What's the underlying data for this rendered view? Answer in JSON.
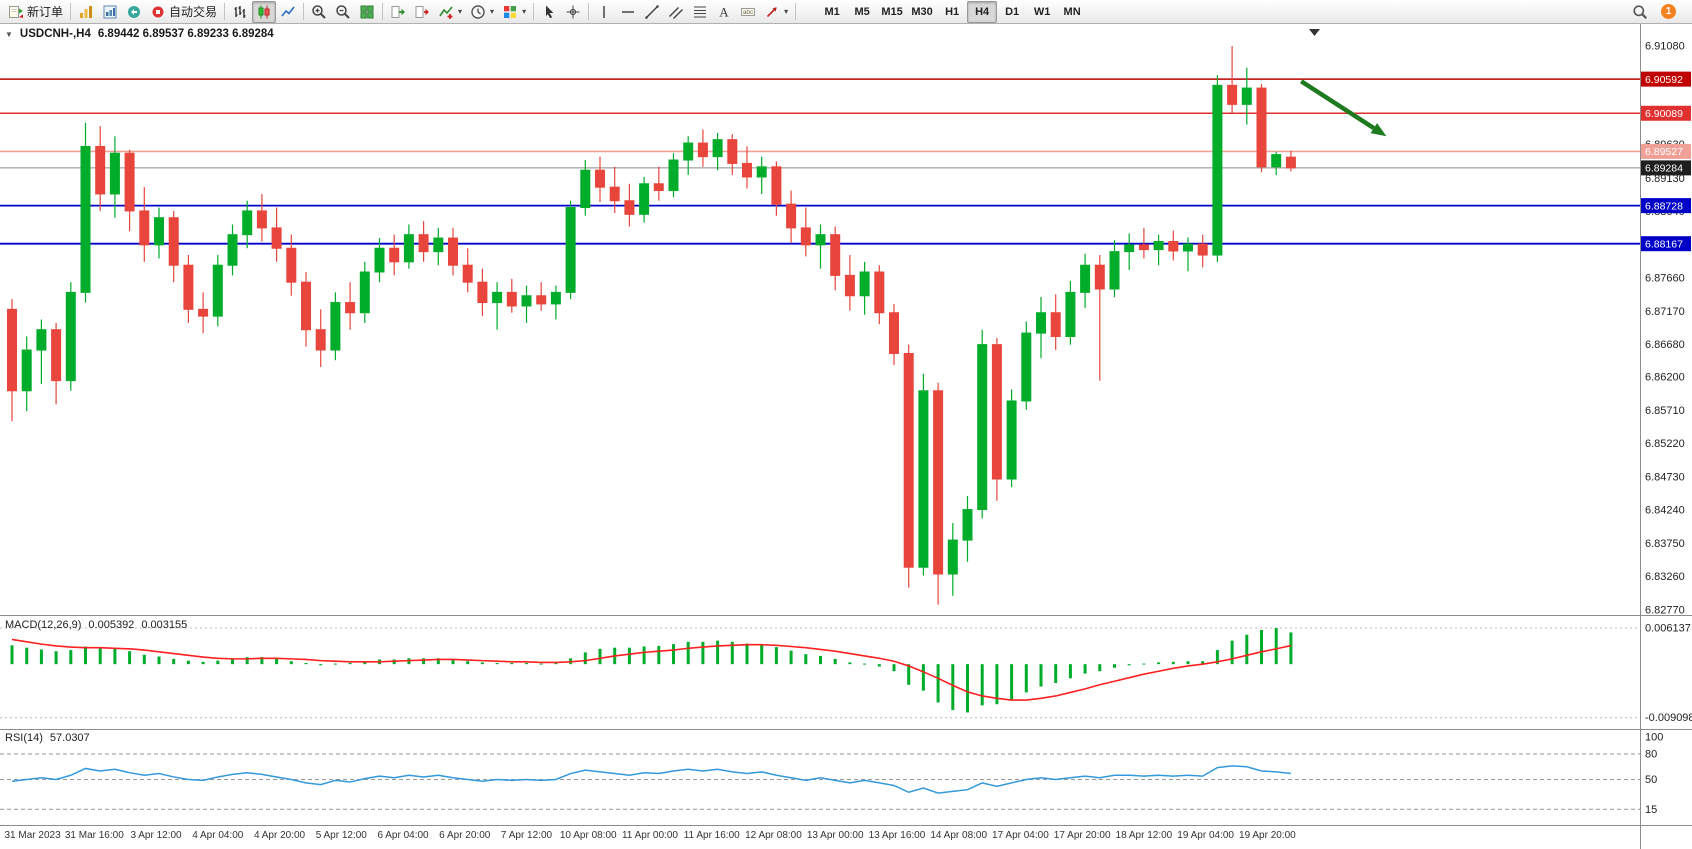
{
  "toolbar": {
    "buttons": [
      {
        "name": "new-order",
        "label": "新订单"
      },
      {
        "sep": true
      },
      {
        "name": "new-chart"
      },
      {
        "name": "profiles"
      },
      {
        "name": "community"
      },
      {
        "name": "auto-trading",
        "label": "自动交易"
      },
      {
        "sep": true
      },
      {
        "name": "bar-chart"
      },
      {
        "name": "candlesticks",
        "active": true
      },
      {
        "name": "line-chart"
      },
      {
        "sep": true
      },
      {
        "name": "zoom-in"
      },
      {
        "name": "zoom-out"
      },
      {
        "name": "tile-windows"
      },
      {
        "sep": true
      },
      {
        "name": "auto-scroll"
      },
      {
        "name": "chart-shift"
      },
      {
        "name": "indicators",
        "caret": true
      },
      {
        "name": "periods",
        "caret": true
      },
      {
        "name": "templates",
        "caret": true
      },
      {
        "sep": true
      },
      {
        "name": "cursor"
      },
      {
        "name": "crosshair"
      },
      {
        "sep": true
      },
      {
        "name": "vline"
      },
      {
        "name": "hline"
      },
      {
        "name": "trendline"
      },
      {
        "name": "channel"
      },
      {
        "name": "fibonacci"
      },
      {
        "name": "text"
      },
      {
        "name": "label"
      },
      {
        "name": "arrows",
        "caret": true
      },
      {
        "sep": true
      }
    ],
    "timeframes": [
      "M1",
      "M5",
      "M15",
      "M30",
      "H1",
      "H4",
      "D1",
      "W1",
      "MN"
    ],
    "active_timeframe": "H4",
    "notification_count": "1"
  },
  "chart_data": [
    {
      "type": "candlestick",
      "title": "USDCNH-,H4",
      "ohlc_text": "6.89442 6.89537 6.89233 6.89284",
      "ohlc_current": {
        "open": 6.89442,
        "high": 6.89537,
        "low": 6.89233,
        "close": 6.89284
      },
      "collapse_glyph": "▼",
      "ylim": [
        6.8277,
        6.9108
      ],
      "y_axis_labels": [
        "6.91080",
        "6.89630",
        "6.89130",
        "6.88640",
        "6.88150",
        "6.87660",
        "6.87170",
        "6.86680",
        "6.86200",
        "6.85710",
        "6.85220",
        "6.84730",
        "6.84240",
        "6.83750",
        "6.83260",
        "6.82770"
      ],
      "x_axis_labels": [
        "31 Mar 2023",
        "31 Mar 16:00",
        "3 Apr 12:00",
        "4 Apr 04:00",
        "4 Apr 20:00",
        "5 Apr 12:00",
        "6 Apr 04:00",
        "6 Apr 20:00",
        "7 Apr 12:00",
        "10 Apr 08:00",
        "11 Apr 00:00",
        "11 Apr 16:00",
        "12 Apr 08:00",
        "13 Apr 00:00",
        "13 Apr 16:00",
        "14 Apr 08:00",
        "17 Apr 04:00",
        "17 Apr 20:00",
        "18 Apr 12:00",
        "19 Apr 04:00",
        "19 Apr 20:00"
      ],
      "candles_ohlc": [
        [
          6.872,
          6.8735,
          6.8555,
          6.86
        ],
        [
          6.86,
          6.868,
          6.857,
          6.866
        ],
        [
          6.866,
          6.8705,
          6.861,
          6.869
        ],
        [
          6.869,
          6.87,
          6.858,
          6.8615
        ],
        [
          6.8615,
          6.876,
          6.86,
          6.8745
        ],
        [
          6.8745,
          6.8995,
          6.873,
          6.896
        ],
        [
          6.896,
          6.899,
          6.8865,
          6.889
        ],
        [
          6.889,
          6.8975,
          6.8855,
          6.895
        ],
        [
          6.895,
          6.8955,
          6.8835,
          6.8865
        ],
        [
          6.8865,
          6.89,
          6.879,
          6.8815
        ],
        [
          6.8815,
          6.887,
          6.8795,
          6.8855
        ],
        [
          6.8855,
          6.8865,
          6.876,
          6.8785
        ],
        [
          6.8785,
          6.88,
          6.87,
          6.872
        ],
        [
          6.872,
          6.8745,
          6.8685,
          6.871
        ],
        [
          6.871,
          6.88,
          6.8695,
          6.8785
        ],
        [
          6.8785,
          6.8845,
          6.877,
          6.883
        ],
        [
          6.883,
          6.888,
          6.881,
          6.8865
        ],
        [
          6.8865,
          6.889,
          6.882,
          6.884
        ],
        [
          6.884,
          6.887,
          6.879,
          6.881
        ],
        [
          6.881,
          6.883,
          6.874,
          6.876
        ],
        [
          6.876,
          6.8775,
          6.8665,
          6.869
        ],
        [
          6.869,
          6.872,
          6.8635,
          6.866
        ],
        [
          6.866,
          6.8745,
          6.8645,
          6.873
        ],
        [
          6.873,
          6.876,
          6.869,
          6.8715
        ],
        [
          6.8715,
          6.879,
          6.87,
          6.8775
        ],
        [
          6.8775,
          6.8825,
          6.876,
          6.881
        ],
        [
          6.881,
          6.883,
          6.877,
          6.879
        ],
        [
          6.879,
          6.8845,
          6.878,
          6.883
        ],
        [
          6.883,
          6.885,
          6.879,
          6.8805
        ],
        [
          6.8805,
          6.884,
          6.8785,
          6.8825
        ],
        [
          6.8825,
          6.884,
          6.877,
          6.8785
        ],
        [
          6.8785,
          6.881,
          6.8745,
          6.876
        ],
        [
          6.876,
          6.878,
          6.871,
          6.873
        ],
        [
          6.873,
          6.876,
          6.869,
          6.8745
        ],
        [
          6.8745,
          6.8765,
          6.8715,
          6.8725
        ],
        [
          6.8725,
          6.8755,
          6.87,
          6.874
        ],
        [
          6.874,
          6.876,
          6.8718,
          6.8728
        ],
        [
          6.8728,
          6.8755,
          6.8705,
          6.8745
        ],
        [
          6.8745,
          6.888,
          6.8735,
          6.887
        ],
        [
          6.887,
          6.894,
          6.8858,
          6.8925
        ],
        [
          6.8925,
          6.8945,
          6.8878,
          6.89
        ],
        [
          6.89,
          6.893,
          6.8862,
          6.888
        ],
        [
          6.888,
          6.8905,
          6.8842,
          6.886
        ],
        [
          6.886,
          6.8915,
          6.8848,
          6.8905
        ],
        [
          6.8905,
          6.893,
          6.888,
          6.8895
        ],
        [
          6.8895,
          6.895,
          6.8885,
          6.894
        ],
        [
          6.894,
          6.8975,
          6.8918,
          6.8965
        ],
        [
          6.8965,
          6.8985,
          6.893,
          6.8945
        ],
        [
          6.8945,
          6.898,
          6.8925,
          6.897
        ],
        [
          6.897,
          6.8978,
          6.8918,
          6.8935
        ],
        [
          6.8935,
          6.896,
          6.8898,
          6.8915
        ],
        [
          6.8915,
          6.8945,
          6.889,
          6.893
        ],
        [
          6.893,
          6.8938,
          6.8858,
          6.8875
        ],
        [
          6.8875,
          6.8895,
          6.8818,
          6.884
        ],
        [
          6.884,
          6.887,
          6.8798,
          6.8815
        ],
        [
          6.8815,
          6.8845,
          6.878,
          6.883
        ],
        [
          6.883,
          6.8842,
          6.8748,
          6.877
        ],
        [
          6.877,
          6.88,
          6.8718,
          6.874
        ],
        [
          6.874,
          6.879,
          6.8712,
          6.8775
        ],
        [
          6.8775,
          6.8785,
          6.8698,
          6.8715
        ],
        [
          6.8715,
          6.8728,
          6.8638,
          6.8655
        ],
        [
          6.8655,
          6.8668,
          6.831,
          6.834
        ],
        [
          6.834,
          6.8625,
          6.8328,
          6.86
        ],
        [
          6.86,
          6.8612,
          6.8285,
          6.833
        ],
        [
          6.833,
          6.8405,
          6.8298,
          6.838
        ],
        [
          6.838,
          6.8445,
          6.8348,
          6.8425
        ],
        [
          6.8425,
          6.869,
          6.8412,
          6.8668
        ],
        [
          6.8668,
          6.8678,
          6.8438,
          6.847
        ],
        [
          6.847,
          6.8602,
          6.8458,
          6.8585
        ],
        [
          6.8585,
          6.8702,
          6.8572,
          6.8685
        ],
        [
          6.8685,
          6.8738,
          6.8648,
          6.8715
        ],
        [
          6.8715,
          6.8742,
          6.866,
          6.868
        ],
        [
          6.868,
          6.8762,
          6.8668,
          6.8745
        ],
        [
          6.8745,
          6.8802,
          6.8722,
          6.8785
        ],
        [
          6.8785,
          6.88,
          6.8615,
          6.875
        ],
        [
          6.875,
          6.8822,
          6.8738,
          6.8805
        ],
        [
          6.8805,
          6.8832,
          6.8778,
          6.8815
        ],
        [
          6.8815,
          6.884,
          6.8795,
          6.8808
        ],
        [
          6.8808,
          6.883,
          6.8785,
          6.882
        ],
        [
          6.882,
          6.8836,
          6.8792,
          6.8806
        ],
        [
          6.8806,
          6.8826,
          6.8776,
          6.8816
        ],
        [
          6.8816,
          6.883,
          6.8782,
          6.88
        ],
        [
          6.88,
          6.9065,
          6.879,
          6.905
        ],
        [
          6.905,
          6.9108,
          6.9008,
          6.9022
        ],
        [
          6.9022,
          6.9076,
          6.8992,
          6.9046
        ],
        [
          6.9046,
          6.9052,
          6.8922,
          6.893
        ],
        [
          6.893,
          6.8952,
          6.8918,
          6.8948
        ],
        [
          6.89442,
          6.89537,
          6.89233,
          6.89284
        ]
      ],
      "hlines": [
        {
          "price": 6.90592,
          "text": "6.90592",
          "color": "#c00000",
          "width": 1.6
        },
        {
          "price": 6.90089,
          "text": "6.90089",
          "color": "#e03030",
          "width": 1.6
        },
        {
          "price": 6.89527,
          "text": "6.89527",
          "color": "#f0a097",
          "width": 1.6
        },
        {
          "price": 6.88728,
          "text": "6.88728",
          "color": "#0000c8",
          "width": 1.8
        },
        {
          "price": 6.88167,
          "text": "6.88167",
          "color": "#0000c8",
          "width": 1.8
        },
        {
          "price": 6.89284,
          "text": "6.89284",
          "color": "#8a8a8a",
          "width": 1,
          "badge": "#1f1f1f"
        }
      ],
      "annotations": [
        {
          "type": "arrow",
          "from_bar": 87.7,
          "from_price": 6.9056,
          "to_bar": 93.5,
          "to_price": 6.8975,
          "color": "#1e7a1e"
        }
      ],
      "colors": {
        "up": "#00ad2b",
        "down": "#e8453c",
        "background": "#ffffff"
      }
    },
    {
      "type": "macd",
      "label": "MACD(12,26,9)",
      "main_value": "0.005392",
      "signal_value": "0.003155",
      "ylim": [
        -0.0105,
        0.0075
      ],
      "axis_labels": [
        {
          "value": 0.006137,
          "text": "0.006137"
        },
        {
          "value": -0.009098,
          "text": "-0.009098"
        }
      ],
      "histogram": [
        0.0032,
        0.0028,
        0.0025,
        0.0022,
        0.0024,
        0.003,
        0.0028,
        0.0027,
        0.0022,
        0.0016,
        0.0013,
        0.0009,
        0.0006,
        0.0004,
        0.0006,
        0.0009,
        0.0012,
        0.0012,
        0.0009,
        0.0005,
        0.0002,
        -0.0002,
        0.0001,
        0.0002,
        0.0005,
        0.0008,
        0.0008,
        0.001,
        0.001,
        0.001,
        0.0008,
        0.0005,
        0.0003,
        0.0002,
        0.0002,
        0.0002,
        0.0001,
        0.0002,
        0.001,
        0.002,
        0.0026,
        0.0028,
        0.0028,
        0.003,
        0.0031,
        0.0034,
        0.0038,
        0.0038,
        0.004,
        0.0038,
        0.0035,
        0.0033,
        0.0029,
        0.0023,
        0.0017,
        0.0014,
        0.0009,
        0.0003,
        0.0001,
        -0.0004,
        -0.0012,
        -0.0035,
        -0.0045,
        -0.0065,
        -0.0078,
        -0.0082,
        -0.007,
        -0.0068,
        -0.006,
        -0.0048,
        -0.0038,
        -0.0032,
        -0.0024,
        -0.0016,
        -0.0012,
        -0.0006,
        -0.0002,
        0.0001,
        0.0003,
        0.0004,
        0.0005,
        0.0005,
        0.0024,
        0.004,
        0.005,
        0.0058,
        0.006137,
        0.005392
      ],
      "signal": [
        0.0042,
        0.0038,
        0.0034,
        0.0031,
        0.0029,
        0.0028,
        0.0028,
        0.0027,
        0.0026,
        0.0024,
        0.0021,
        0.0018,
        0.0015,
        0.0012,
        0.001,
        0.0009,
        0.0009,
        0.001,
        0.001,
        0.0009,
        0.0008,
        0.0006,
        0.0005,
        0.0004,
        0.0004,
        0.0004,
        0.0005,
        0.0006,
        0.0007,
        0.0008,
        0.0008,
        0.0007,
        0.0006,
        0.0005,
        0.0004,
        0.0004,
        0.0003,
        0.0003,
        0.0004,
        0.0006,
        0.001,
        0.0014,
        0.0017,
        0.002,
        0.0022,
        0.0024,
        0.0027,
        0.0029,
        0.0031,
        0.0032,
        0.0033,
        0.0033,
        0.0032,
        0.003,
        0.0028,
        0.0025,
        0.0022,
        0.0018,
        0.0014,
        0.001,
        0.0005,
        -0.0003,
        -0.0013,
        -0.0024,
        -0.0036,
        -0.0047,
        -0.0054,
        -0.0058,
        -0.0061,
        -0.0061,
        -0.0058,
        -0.0054,
        -0.0048,
        -0.0042,
        -0.0035,
        -0.0029,
        -0.0023,
        -0.0017,
        -0.0012,
        -0.0007,
        -0.0003,
        0.0,
        0.0004,
        0.0009,
        0.0015,
        0.0021,
        0.0026,
        0.003155
      ],
      "colors": {
        "histogram": "#00ad2b",
        "signal": "#ff2020"
      }
    },
    {
      "type": "rsi",
      "label": "RSI(14)",
      "value": "57.0307",
      "ylim": [
        0,
        100
      ],
      "levels": [
        80,
        50,
        15
      ],
      "axis_labels": [
        "100",
        "80",
        "50",
        "15"
      ],
      "values": [
        48,
        50,
        52,
        50,
        55,
        63,
        60,
        62,
        58,
        55,
        57,
        53,
        50,
        49,
        53,
        56,
        58,
        56,
        53,
        50,
        46,
        44,
        49,
        47,
        51,
        54,
        52,
        55,
        53,
        55,
        52,
        50,
        48,
        50,
        49,
        50,
        49,
        50,
        57,
        61,
        59,
        57,
        55,
        58,
        57,
        60,
        62,
        60,
        62,
        59,
        57,
        59,
        55,
        52,
        49,
        52,
        49,
        46,
        49,
        46,
        43,
        35,
        40,
        34,
        36,
        38,
        46,
        42,
        46,
        50,
        52,
        50,
        52,
        54,
        52,
        55,
        55,
        54,
        55,
        54,
        55,
        54,
        64,
        66,
        65,
        60,
        59,
        57.0307
      ],
      "colors": {
        "line": "#3399dd"
      }
    }
  ]
}
